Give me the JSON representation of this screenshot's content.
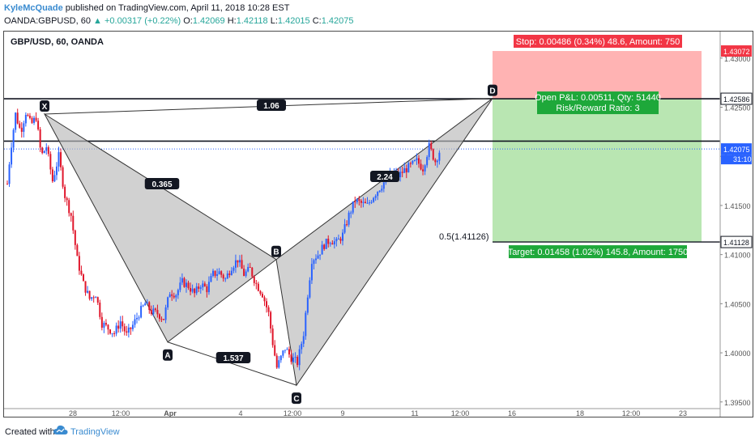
{
  "header": {
    "author": "KyleMcQuade",
    "published_text": " published on TradingView.com, April 11, 2018 10:28 EST",
    "symbol_line": "OANDA:GBPUSD, 60",
    "change": "▲ +0.00317 (+0.22%)",
    "o_label": "O:",
    "o_val": "1.42069",
    "h_label": "H:",
    "h_val": "1.42118",
    "l_label": "L:",
    "l_val": "1.42015",
    "c_label": "C:",
    "c_val": "1.42075"
  },
  "chart_title": "GBP/USD, 60, OANDA",
  "footer": {
    "created": "Created with",
    "brand": "TradingView"
  },
  "colors": {
    "up": "#2962ff",
    "down": "#e0162b",
    "pattern_fill": "#b8b8b8",
    "stop_fill": "#ffb3b3",
    "target_fill": "#b9e6b2",
    "stop_label": "#f23645",
    "target_label": "#1ea83a",
    "pnl_label": "#1ea83a"
  },
  "chart_data": {
    "type": "candlestick",
    "x_ticks": [
      "28",
      "12:00",
      "Apr",
      "4",
      "12:00",
      "9",
      "11",
      "12:00",
      "16",
      "18",
      "12:00",
      "23"
    ],
    "y_ticks": [
      "1.43000",
      "1.42500",
      "1.42000",
      "1.41500",
      "1.41000",
      "1.40500",
      "1.40000",
      "1.39500"
    ],
    "ylim": [
      1.3935,
      1.4327
    ],
    "price_labels": [
      {
        "text": "1.43072",
        "value": 1.43072,
        "color": "#f23645"
      },
      {
        "text": "1.42586",
        "value": 1.42586,
        "color": "#131722"
      },
      {
        "text": "1.42075",
        "value": 1.42075,
        "color": "#2962ff",
        "extra": "31:10"
      },
      {
        "text": "1.41128",
        "value": 1.41128,
        "color": "#131722"
      }
    ],
    "horizontal_lines": [
      1.42586,
      1.42155,
      1.41128
    ],
    "current_price": 1.42075,
    "pattern": {
      "name": "XABCD harmonic",
      "points": [
        {
          "label": "X",
          "value": 1.4243
        },
        {
          "label": "A",
          "value": 1.4011
        },
        {
          "label": "B",
          "value": 1.4095
        },
        {
          "label": "C",
          "value": 1.3967
        },
        {
          "label": "D",
          "value": 1.4259
        }
      ],
      "ratios": [
        "1.06",
        "0.365",
        "1.537",
        "2.24"
      ]
    },
    "fib_label": "0.5(1.41126)",
    "position": {
      "stop_text": "Stop: 0.00486 (0.34%) 48.6, Amount: 750",
      "pnl_text1": "Open P&L: 0.00511, Qty: 51440",
      "pnl_text2": "Risk/Reward Ratio: 3",
      "target_text": "Target: 0.01458 (1.02%) 145.8, Amount: 1750",
      "entry": 1.42586,
      "stop": 1.43072,
      "target": 1.41128
    },
    "price_path": [
      [
        0,
        1.4172
      ],
      [
        3,
        1.4205
      ],
      [
        8,
        1.4243
      ],
      [
        13,
        1.4225
      ],
      [
        18,
        1.4245
      ],
      [
        23,
        1.4232
      ],
      [
        28,
        1.424
      ],
      [
        33,
        1.42
      ],
      [
        38,
        1.421
      ],
      [
        44,
        1.4175
      ],
      [
        50,
        1.42
      ],
      [
        56,
        1.416
      ],
      [
        62,
        1.414
      ],
      [
        68,
        1.4095
      ],
      [
        74,
        1.407
      ],
      [
        80,
        1.4055
      ],
      [
        86,
        1.406
      ],
      [
        92,
        1.403
      ],
      [
        98,
        1.4025
      ],
      [
        104,
        1.402
      ],
      [
        110,
        1.4032
      ],
      [
        116,
        1.4018
      ],
      [
        122,
        1.4028
      ],
      [
        128,
        1.404
      ],
      [
        134,
        1.405
      ],
      [
        140,
        1.4042
      ],
      [
        146,
        1.404
      ],
      [
        152,
        1.4035
      ],
      [
        158,
        1.4062
      ],
      [
        164,
        1.406
      ],
      [
        170,
        1.4072
      ],
      [
        176,
        1.4068
      ],
      [
        182,
        1.406
      ],
      [
        188,
        1.407
      ],
      [
        194,
        1.4065
      ],
      [
        200,
        1.408
      ],
      [
        206,
        1.4082
      ],
      [
        212,
        1.4075
      ],
      [
        218,
        1.4088
      ],
      [
        224,
        1.4095
      ],
      [
        230,
        1.408
      ],
      [
        236,
        1.4085
      ],
      [
        242,
        1.407
      ],
      [
        248,
        1.406
      ],
      [
        254,
        1.404
      ],
      [
        258,
        1.401
      ],
      [
        262,
        1.3985
      ],
      [
        266,
        1.3995
      ],
      [
        270,
        1.4005
      ],
      [
        276,
        1.3995
      ],
      [
        282,
        1.399
      ],
      [
        288,
        1.402
      ],
      [
        292,
        1.406
      ],
      [
        296,
        1.4095
      ],
      [
        302,
        1.41
      ],
      [
        308,
        1.411
      ],
      [
        314,
        1.4115
      ],
      [
        320,
        1.4112
      ],
      [
        326,
        1.412
      ],
      [
        332,
        1.414
      ],
      [
        338,
        1.4155
      ],
      [
        344,
        1.4152
      ],
      [
        350,
        1.415
      ],
      [
        356,
        1.416
      ],
      [
        362,
        1.4168
      ],
      [
        368,
        1.4176
      ],
      [
        374,
        1.4184
      ],
      [
        380,
        1.418
      ],
      [
        386,
        1.4186
      ],
      [
        392,
        1.419
      ],
      [
        398,
        1.4195
      ],
      [
        404,
        1.4188
      ],
      [
        410,
        1.421
      ],
      [
        416,
        1.4195
      ],
      [
        420,
        1.4205
      ]
    ]
  }
}
